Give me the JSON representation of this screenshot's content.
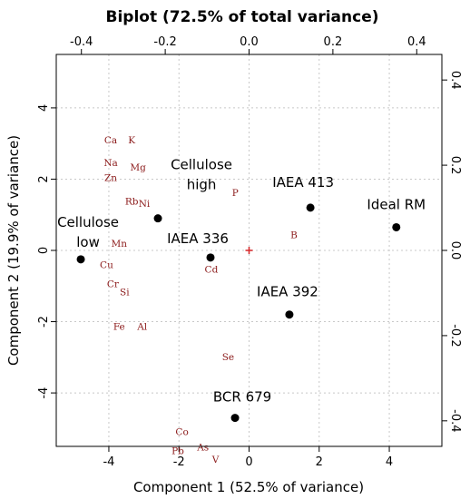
{
  "chart_data": {
    "type": "scatter",
    "title": "Biplot (72.5% of total variance)",
    "xlabel": "Component 1 (52.5% of variance)",
    "ylabel": "Component 2 (19.9% of variance)",
    "xlim": [
      -5.5,
      5.5
    ],
    "ylim": [
      -5.5,
      5.5
    ],
    "x_ticks": [
      -4,
      -2,
      0,
      2,
      4
    ],
    "y_ticks": [
      -4,
      -2,
      0,
      2,
      4
    ],
    "top_xlim": [
      -0.46,
      0.46
    ],
    "right_ylim": [
      -0.46,
      0.46
    ],
    "top_ticks": [
      -0.4,
      -0.2,
      0.0,
      0.2,
      0.4
    ],
    "right_ticks": [
      -0.4,
      -0.2,
      0.0,
      0.2,
      0.4
    ],
    "grid": true,
    "observations": [
      {
        "label": [
          "Cellulose",
          "low"
        ],
        "x": -4.8,
        "y": -0.25
      },
      {
        "label": [
          "Cellulose",
          "high"
        ],
        "x": -2.6,
        "y": 0.9
      },
      {
        "label": [
          "IAEA 336"
        ],
        "x": -1.1,
        "y": -0.2
      },
      {
        "label": [
          "IAEA 413"
        ],
        "x": 1.75,
        "y": 1.2
      },
      {
        "label": [
          "Ideal RM"
        ],
        "x": 4.2,
        "y": 0.65
      },
      {
        "label": [
          "IAEA 392"
        ],
        "x": 1.15,
        "y": -1.8
      },
      {
        "label": [
          "BCR 679"
        ],
        "x": -0.4,
        "y": -4.7
      }
    ],
    "variables": [
      {
        "name": "Ca",
        "x": -0.33,
        "y": 0.26
      },
      {
        "name": "K",
        "x": -0.28,
        "y": 0.26
      },
      {
        "name": "Na",
        "x": -0.33,
        "y": 0.207
      },
      {
        "name": "Mg",
        "x": -0.265,
        "y": 0.196
      },
      {
        "name": "Zn",
        "x": -0.33,
        "y": 0.171
      },
      {
        "name": "P",
        "x": -0.033,
        "y": 0.136
      },
      {
        "name": "Rb",
        "x": -0.28,
        "y": 0.116
      },
      {
        "name": "Ni",
        "x": -0.25,
        "y": 0.111
      },
      {
        "name": "B",
        "x": 0.107,
        "y": 0.037
      },
      {
        "name": "Mn",
        "x": -0.31,
        "y": 0.017
      },
      {
        "name": "Cu",
        "x": -0.34,
        "y": -0.033
      },
      {
        "name": "Cd",
        "x": -0.09,
        "y": -0.044
      },
      {
        "name": "Cr",
        "x": -0.325,
        "y": -0.078
      },
      {
        "name": "Si",
        "x": -0.297,
        "y": -0.097
      },
      {
        "name": "Fe",
        "x": -0.31,
        "y": -0.178
      },
      {
        "name": "Al",
        "x": -0.255,
        "y": -0.178
      },
      {
        "name": "Se",
        "x": -0.05,
        "y": -0.249
      },
      {
        "name": "Co",
        "x": -0.16,
        "y": -0.425
      },
      {
        "name": "As",
        "x": -0.11,
        "y": -0.461
      },
      {
        "name": "Pb",
        "x": -0.17,
        "y": -0.47
      },
      {
        "name": "V",
        "x": -0.08,
        "y": -0.49
      }
    ],
    "center_marker": {
      "x": 0,
      "y": 0,
      "color": "#d62728"
    },
    "colors": {
      "observations": "#000000",
      "variables": "#8b1a1a",
      "grid": "#c8c8c8"
    }
  }
}
